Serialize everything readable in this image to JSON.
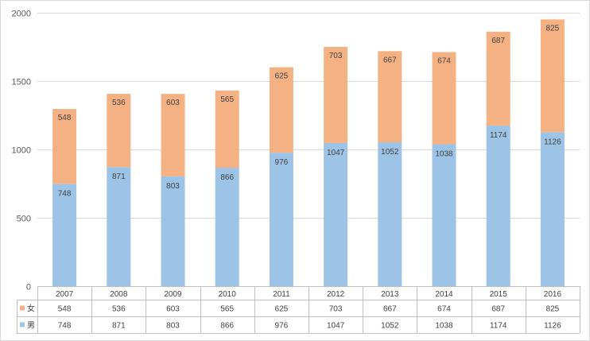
{
  "chart_data": {
    "type": "bar",
    "stacked": true,
    "title": "",
    "xlabel": "",
    "ylabel": "",
    "categories": [
      "2007",
      "2008",
      "2009",
      "2010",
      "2011",
      "2012",
      "2013",
      "2014",
      "2015",
      "2016"
    ],
    "series": [
      {
        "name": "男",
        "color": "#9dc3e6",
        "values": [
          748,
          871,
          803,
          866,
          976,
          1047,
          1052,
          1038,
          1174,
          1126
        ]
      },
      {
        "name": "女",
        "color": "#f4b183",
        "values": [
          548,
          536,
          603,
          565,
          625,
          703,
          667,
          674,
          687,
          825
        ]
      }
    ],
    "ylim": [
      0,
      2000
    ],
    "yticks": [
      0,
      500,
      1000,
      1500,
      2000
    ],
    "grid": true,
    "data_table": true,
    "table_rows": [
      "女",
      "男"
    ]
  }
}
